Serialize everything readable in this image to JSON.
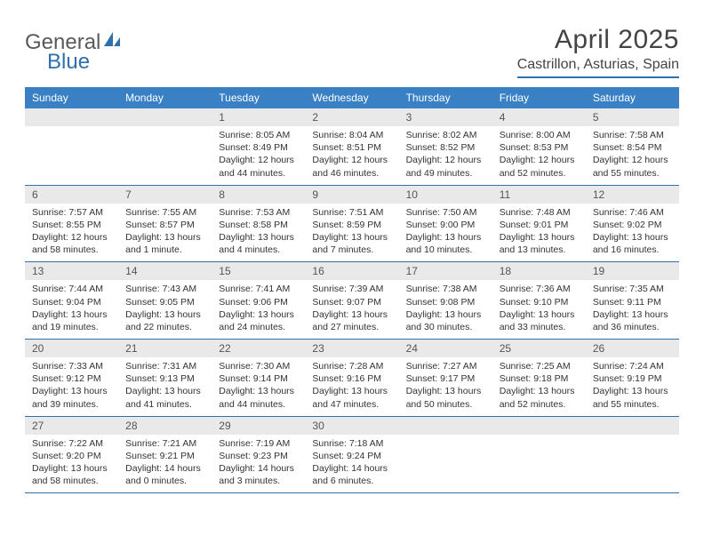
{
  "logo": {
    "text1": "General",
    "text2": "Blue"
  },
  "title": "April 2025",
  "location": "Castrillon, Asturias, Spain",
  "colors": {
    "header_bg": "#3a80c4",
    "header_text": "#ffffff",
    "rule": "#2f6fad",
    "daynum_bg": "#e9e9e9",
    "text": "#333333",
    "logo_gray": "#5a5a5a",
    "logo_blue": "#2f6fad",
    "page_bg": "#ffffff"
  },
  "fonts": {
    "title_size_pt": 22,
    "location_size_pt": 12,
    "dayhead_size_pt": 9,
    "body_size_pt": 8
  },
  "day_names": [
    "Sunday",
    "Monday",
    "Tuesday",
    "Wednesday",
    "Thursday",
    "Friday",
    "Saturday"
  ],
  "weeks": [
    [
      null,
      null,
      {
        "n": "1",
        "sunrise": "8:05 AM",
        "sunset": "8:49 PM",
        "daylight": "12 hours and 44 minutes."
      },
      {
        "n": "2",
        "sunrise": "8:04 AM",
        "sunset": "8:51 PM",
        "daylight": "12 hours and 46 minutes."
      },
      {
        "n": "3",
        "sunrise": "8:02 AM",
        "sunset": "8:52 PM",
        "daylight": "12 hours and 49 minutes."
      },
      {
        "n": "4",
        "sunrise": "8:00 AM",
        "sunset": "8:53 PM",
        "daylight": "12 hours and 52 minutes."
      },
      {
        "n": "5",
        "sunrise": "7:58 AM",
        "sunset": "8:54 PM",
        "daylight": "12 hours and 55 minutes."
      }
    ],
    [
      {
        "n": "6",
        "sunrise": "7:57 AM",
        "sunset": "8:55 PM",
        "daylight": "12 hours and 58 minutes."
      },
      {
        "n": "7",
        "sunrise": "7:55 AM",
        "sunset": "8:57 PM",
        "daylight": "13 hours and 1 minute."
      },
      {
        "n": "8",
        "sunrise": "7:53 AM",
        "sunset": "8:58 PM",
        "daylight": "13 hours and 4 minutes."
      },
      {
        "n": "9",
        "sunrise": "7:51 AM",
        "sunset": "8:59 PM",
        "daylight": "13 hours and 7 minutes."
      },
      {
        "n": "10",
        "sunrise": "7:50 AM",
        "sunset": "9:00 PM",
        "daylight": "13 hours and 10 minutes."
      },
      {
        "n": "11",
        "sunrise": "7:48 AM",
        "sunset": "9:01 PM",
        "daylight": "13 hours and 13 minutes."
      },
      {
        "n": "12",
        "sunrise": "7:46 AM",
        "sunset": "9:02 PM",
        "daylight": "13 hours and 16 minutes."
      }
    ],
    [
      {
        "n": "13",
        "sunrise": "7:44 AM",
        "sunset": "9:04 PM",
        "daylight": "13 hours and 19 minutes."
      },
      {
        "n": "14",
        "sunrise": "7:43 AM",
        "sunset": "9:05 PM",
        "daylight": "13 hours and 22 minutes."
      },
      {
        "n": "15",
        "sunrise": "7:41 AM",
        "sunset": "9:06 PM",
        "daylight": "13 hours and 24 minutes."
      },
      {
        "n": "16",
        "sunrise": "7:39 AM",
        "sunset": "9:07 PM",
        "daylight": "13 hours and 27 minutes."
      },
      {
        "n": "17",
        "sunrise": "7:38 AM",
        "sunset": "9:08 PM",
        "daylight": "13 hours and 30 minutes."
      },
      {
        "n": "18",
        "sunrise": "7:36 AM",
        "sunset": "9:10 PM",
        "daylight": "13 hours and 33 minutes."
      },
      {
        "n": "19",
        "sunrise": "7:35 AM",
        "sunset": "9:11 PM",
        "daylight": "13 hours and 36 minutes."
      }
    ],
    [
      {
        "n": "20",
        "sunrise": "7:33 AM",
        "sunset": "9:12 PM",
        "daylight": "13 hours and 39 minutes."
      },
      {
        "n": "21",
        "sunrise": "7:31 AM",
        "sunset": "9:13 PM",
        "daylight": "13 hours and 41 minutes."
      },
      {
        "n": "22",
        "sunrise": "7:30 AM",
        "sunset": "9:14 PM",
        "daylight": "13 hours and 44 minutes."
      },
      {
        "n": "23",
        "sunrise": "7:28 AM",
        "sunset": "9:16 PM",
        "daylight": "13 hours and 47 minutes."
      },
      {
        "n": "24",
        "sunrise": "7:27 AM",
        "sunset": "9:17 PM",
        "daylight": "13 hours and 50 minutes."
      },
      {
        "n": "25",
        "sunrise": "7:25 AM",
        "sunset": "9:18 PM",
        "daylight": "13 hours and 52 minutes."
      },
      {
        "n": "26",
        "sunrise": "7:24 AM",
        "sunset": "9:19 PM",
        "daylight": "13 hours and 55 minutes."
      }
    ],
    [
      {
        "n": "27",
        "sunrise": "7:22 AM",
        "sunset": "9:20 PM",
        "daylight": "13 hours and 58 minutes."
      },
      {
        "n": "28",
        "sunrise": "7:21 AM",
        "sunset": "9:21 PM",
        "daylight": "14 hours and 0 minutes."
      },
      {
        "n": "29",
        "sunrise": "7:19 AM",
        "sunset": "9:23 PM",
        "daylight": "14 hours and 3 minutes."
      },
      {
        "n": "30",
        "sunrise": "7:18 AM",
        "sunset": "9:24 PM",
        "daylight": "14 hours and 6 minutes."
      },
      null,
      null,
      null
    ]
  ],
  "labels": {
    "sunrise": "Sunrise:",
    "sunset": "Sunset:",
    "daylight": "Daylight:"
  }
}
